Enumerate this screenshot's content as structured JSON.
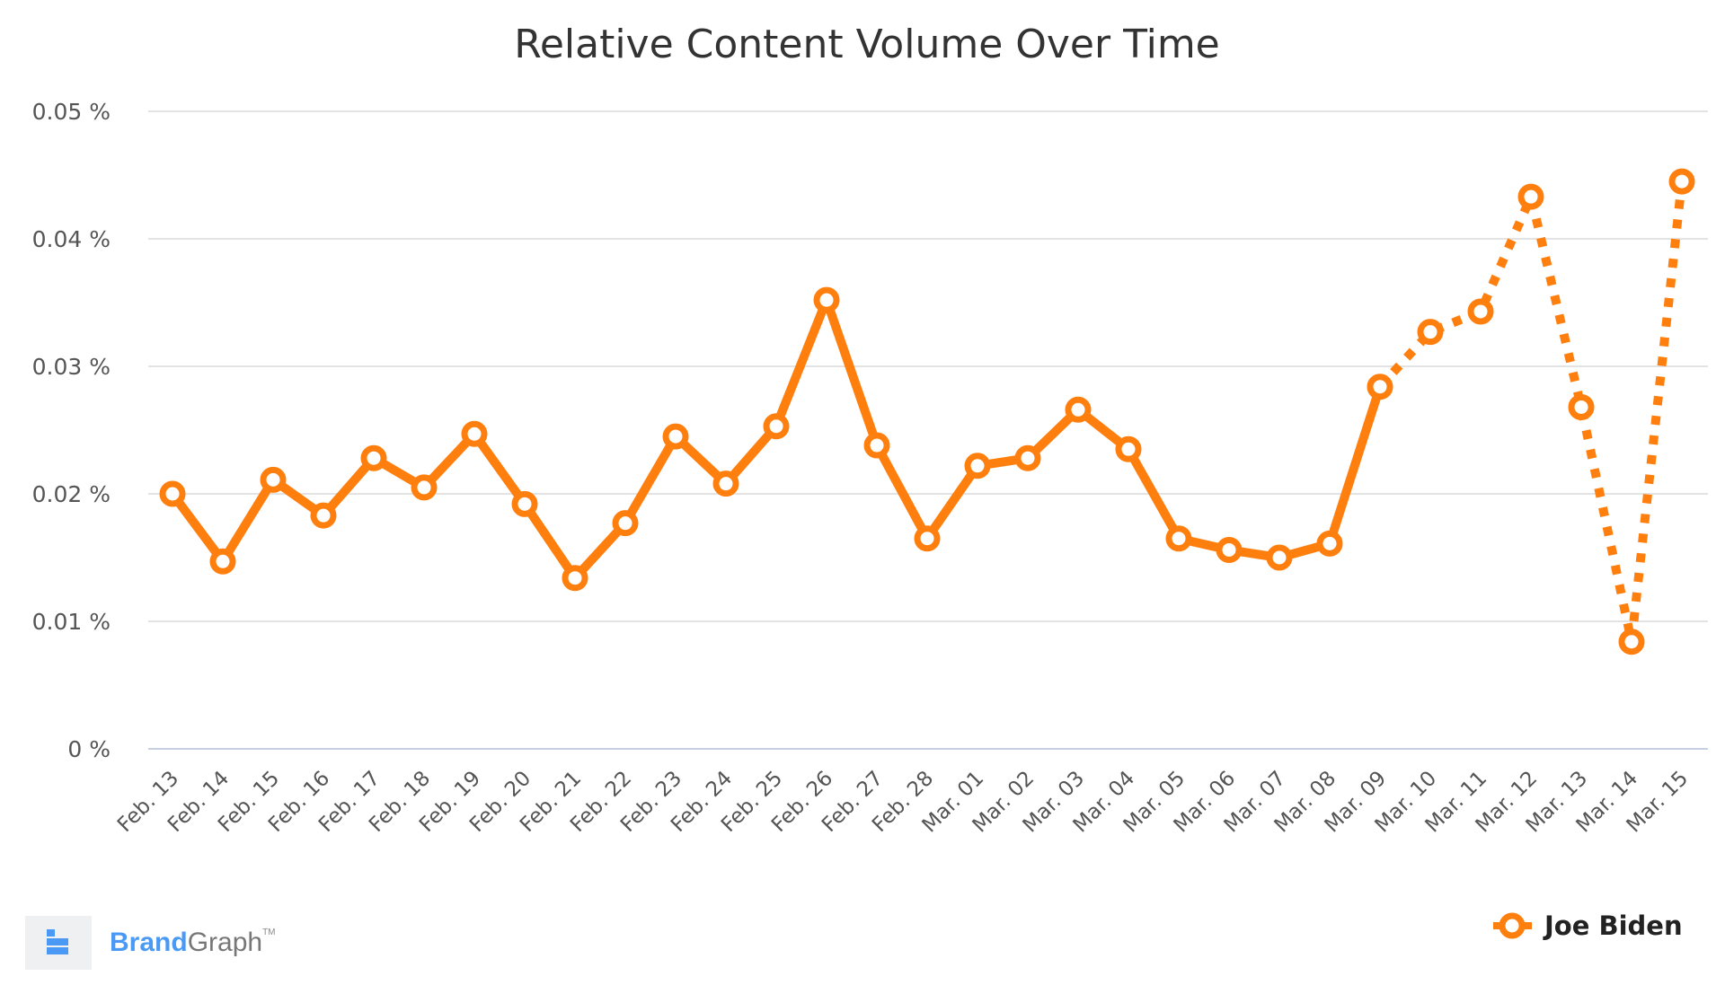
{
  "chart_data": {
    "type": "line",
    "title": "Relative Content Volume Over Time",
    "xlabel": "",
    "ylabel": "",
    "ylim": [
      0,
      0.05
    ],
    "yticks": [
      "0 %",
      "0.01 %",
      "0.02 %",
      "0.03 %",
      "0.04 %",
      "0.05 %"
    ],
    "ytick_values": [
      0,
      0.01,
      0.02,
      0.03,
      0.04,
      0.05
    ],
    "grid": true,
    "legend_position": "bottom-right",
    "categories": [
      "Feb. 13",
      "Feb. 14",
      "Feb. 15",
      "Feb. 16",
      "Feb. 17",
      "Feb. 18",
      "Feb. 19",
      "Feb. 20",
      "Feb. 21",
      "Feb. 22",
      "Feb. 23",
      "Feb. 24",
      "Feb. 25",
      "Feb. 26",
      "Feb. 27",
      "Feb. 28",
      "Mar. 01",
      "Mar. 02",
      "Mar. 03",
      "Mar. 04",
      "Mar. 05",
      "Mar. 06",
      "Mar. 07",
      "Mar. 08",
      "Mar. 09",
      "Mar. 10",
      "Mar. 11",
      "Mar. 12",
      "Mar. 13",
      "Mar. 14",
      "Mar. 15"
    ],
    "series": [
      {
        "name": "Joe Biden",
        "color": "#ff7f0e",
        "values": [
          0.02,
          0.0147,
          0.0211,
          0.0183,
          0.0228,
          0.0205,
          0.0247,
          0.0192,
          0.0134,
          0.0177,
          0.0245,
          0.0208,
          0.0253,
          0.0352,
          0.0238,
          0.0165,
          0.0222,
          0.0228,
          0.0266,
          0.0235,
          0.0165,
          0.0156,
          0.015,
          0.0161,
          0.0284,
          0.0327,
          0.0343,
          0.0433,
          0.0268,
          0.0084,
          0.0445
        ],
        "dashed_from": "Mar. 09"
      }
    ]
  },
  "logo": {
    "brand": "Brand",
    "graph": "Graph",
    "tm": "TM"
  }
}
